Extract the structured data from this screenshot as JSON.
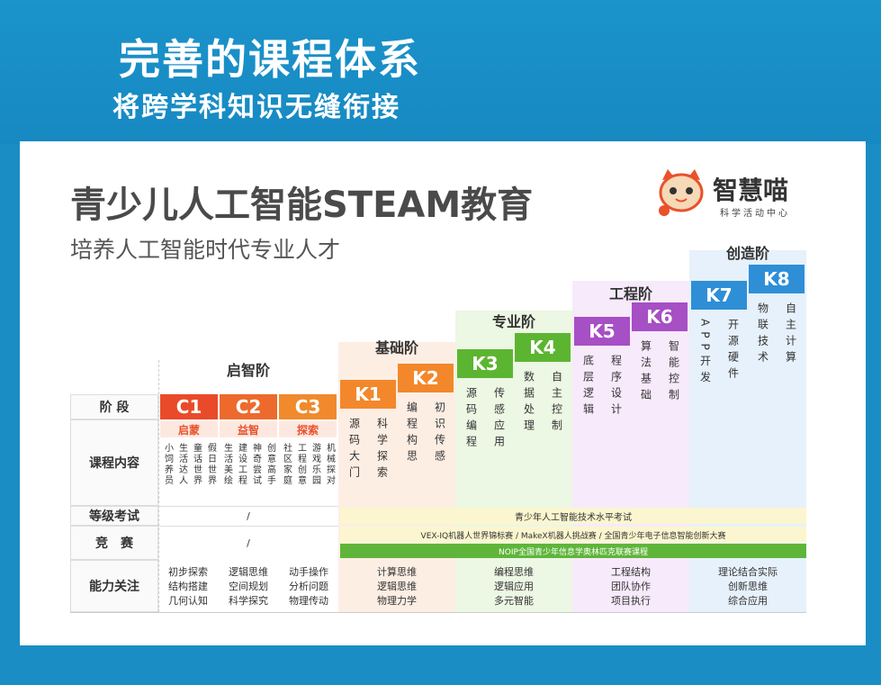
{
  "hero": {
    "title": "完善的课程体系",
    "subtitle": "将跨学科知识无缝衔接"
  },
  "card": {
    "title": "青少儿人工智能STEAM教育",
    "subtitle": "培养人工智能时代专业人才",
    "logo": {
      "name": "智慧喵",
      "tagline": "科学活动中心",
      "icon": "cat-mascot-icon"
    }
  },
  "stages": {
    "qizhi": "启智阶",
    "jichu": "基础阶",
    "zhuanye": "专业阶",
    "gongcheng": "工程阶",
    "chuangzao": "创造阶"
  },
  "row_labels": {
    "stage": "阶 段",
    "content": "课程内容",
    "exam": "等级考试",
    "competition": "竞　赛",
    "focus": "能力关注"
  },
  "c_levels": [
    {
      "code": "C1",
      "tag": "启蒙",
      "items": [
        "小饲养员",
        "生活达人",
        "童话世界",
        "假日世界"
      ]
    },
    {
      "code": "C2",
      "tag": "益智",
      "items": [
        "生活美绘",
        "建设工程",
        "神奇尝试",
        "创意高手"
      ]
    },
    {
      "code": "C3",
      "tag": "探索",
      "items": [
        "社区家庭",
        "工程创意",
        "游戏乐园",
        "机械探对"
      ]
    }
  ],
  "k_levels": [
    {
      "code": "K1",
      "items": [
        "源码大门",
        "科学探索"
      ]
    },
    {
      "code": "K2",
      "items": [
        "编程构思",
        "初识传感"
      ]
    },
    {
      "code": "K3",
      "items": [
        "源码编程",
        "传感应用"
      ]
    },
    {
      "code": "K4",
      "items": [
        "数据处理",
        "自主控制"
      ]
    },
    {
      "code": "K5",
      "items": [
        "底层逻辑",
        "程序设计"
      ]
    },
    {
      "code": "K6",
      "items": [
        "算法基础",
        "智能控制"
      ]
    },
    {
      "code": "K7",
      "items": [
        "APP开发",
        "开源硬件"
      ]
    },
    {
      "code": "K8",
      "items": [
        "物联技术",
        "自主计算"
      ]
    }
  ],
  "exam": {
    "c_value": "/",
    "k_value": "青少年人工智能技术水平考试"
  },
  "competition": {
    "c_value": "/",
    "band1": "VEX-IQ机器人世界锦标赛 / MakeX机器人挑战赛 / 全国青少年电子信息智能创新大赛",
    "band2": "NOIP全国青少年信息学奥林匹克联赛课程"
  },
  "focus": [
    [
      "初步探索",
      "结构搭建",
      "几何认知"
    ],
    [
      "逻辑思维",
      "空间规划",
      "科学探究"
    ],
    [
      "动手操作",
      "分析问题",
      "物理传动"
    ],
    [
      "计算思维",
      "逻辑思维",
      "物理力学"
    ],
    [
      "编程思维",
      "逻辑应用",
      "多元智能"
    ],
    [
      "工程结构",
      "团队协作",
      "项目执行"
    ],
    [
      "理论结合实际",
      "创新思维",
      "综合应用"
    ]
  ],
  "colors": {
    "c_red": "#e94b2a",
    "c_orange": "#f08a2c",
    "k_orange": "#f2882b",
    "k_green": "#5cb531",
    "k_purple": "#a74fc4",
    "k_blue": "#2e8fd6",
    "band_yellow": "#fbf6cf",
    "band_green": "#5fb53a"
  }
}
